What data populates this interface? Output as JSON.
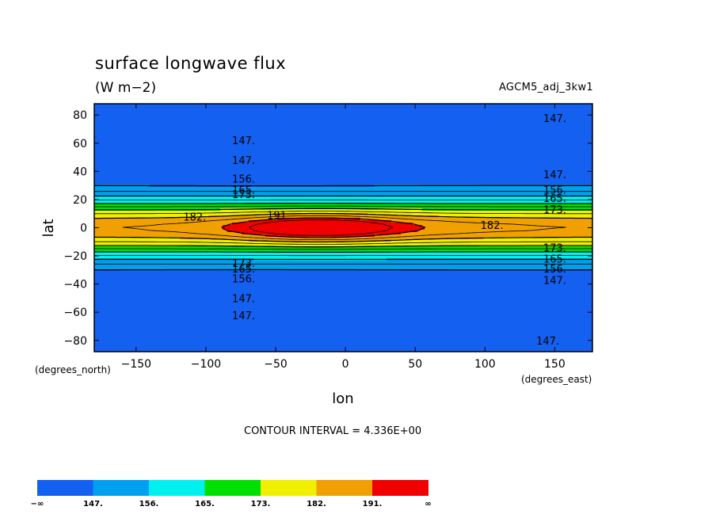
{
  "header": {
    "title": "surface longwave flux",
    "units": "(W m−2)",
    "run_id": "AGCM5_adj_3kw1"
  },
  "contour_interval_text": "CONTOUR INTERVAL = 4.336E+00",
  "chart_data": {
    "type": "heatmap",
    "title": "surface longwave flux",
    "units": "(W m−2)",
    "xlabel": "lon",
    "ylabel": "lat",
    "x_unit_label": "(degrees_east)",
    "y_unit_label": "(degrees_north)",
    "xlim": [
      -180,
      177
    ],
    "ylim": [
      -88,
      88
    ],
    "xticks": [
      -150,
      -100,
      -50,
      0,
      50,
      100,
      150
    ],
    "yticks": [
      80,
      60,
      40,
      20,
      0,
      -20,
      -40,
      -60,
      -80
    ],
    "xtick_labels": [
      "−150",
      "−100",
      "−50",
      "0",
      "50",
      "100",
      "150"
    ],
    "ytick_labels": [
      "80",
      "60",
      "40",
      "20",
      "0",
      "−20",
      "−40",
      "−60",
      "−80"
    ],
    "contour_levels": [
      147,
      156,
      165,
      173,
      182,
      191
    ],
    "colorbar": {
      "labels": [
        "−∞",
        "147.",
        "156.",
        "165.",
        "173.",
        "182.",
        "191.",
        "∞"
      ],
      "colors": [
        "#1460f0",
        "#00a0f0",
        "#00f0f0",
        "#00e000",
        "#f0f000",
        "#f0a000",
        "#f00000"
      ]
    },
    "bands": [
      {
        "range": [
          -9999,
          147
        ],
        "color": "#1460f0"
      },
      {
        "range": [
          147,
          156
        ],
        "color": "#00a0f0"
      },
      {
        "range": [
          156,
          165
        ],
        "color": "#00f0f0"
      },
      {
        "range": [
          165,
          173
        ],
        "color": "#00e000"
      },
      {
        "range": [
          173,
          182
        ],
        "color": "#f0f000"
      },
      {
        "range": [
          182,
          191
        ],
        "color": "#f0a000"
      },
      {
        "range": [
          191,
          9999
        ],
        "color": "#f00000"
      }
    ],
    "contour_labels": [
      {
        "text": "147.",
        "lon": 150,
        "lat": 78
      },
      {
        "text": "147.",
        "lon": -73,
        "lat": 62
      },
      {
        "text": "147.",
        "lon": -73,
        "lat": 48
      },
      {
        "text": "147.",
        "lon": 150,
        "lat": 38
      },
      {
        "text": "156.",
        "lon": -73,
        "lat": 35
      },
      {
        "text": "165.",
        "lon": -73,
        "lat": 27
      },
      {
        "text": "173.",
        "lon": -73,
        "lat": 24
      },
      {
        "text": "156.",
        "lon": 150,
        "lat": 27
      },
      {
        "text": "165.",
        "lon": 150,
        "lat": 21
      },
      {
        "text": "173.",
        "lon": 150,
        "lat": 13
      },
      {
        "text": "182.",
        "lon": -108,
        "lat": 8
      },
      {
        "text": "191.",
        "lon": -48,
        "lat": 9
      },
      {
        "text": "182.",
        "lon": 105,
        "lat": 2
      },
      {
        "text": "173.",
        "lon": 150,
        "lat": -14
      },
      {
        "text": "165.",
        "lon": 150,
        "lat": -22
      },
      {
        "text": "156.",
        "lon": 150,
        "lat": -29
      },
      {
        "text": "147.",
        "lon": 150,
        "lat": -37
      },
      {
        "text": "173.",
        "lon": -73,
        "lat": -25
      },
      {
        "text": "165.",
        "lon": -73,
        "lat": -29
      },
      {
        "text": "156.",
        "lon": -73,
        "lat": -36
      },
      {
        "text": "147.",
        "lon": -73,
        "lat": -50
      },
      {
        "text": "147.",
        "lon": -73,
        "lat": -62
      },
      {
        "text": "147.",
        "lon": 145,
        "lat": -80
      }
    ]
  }
}
